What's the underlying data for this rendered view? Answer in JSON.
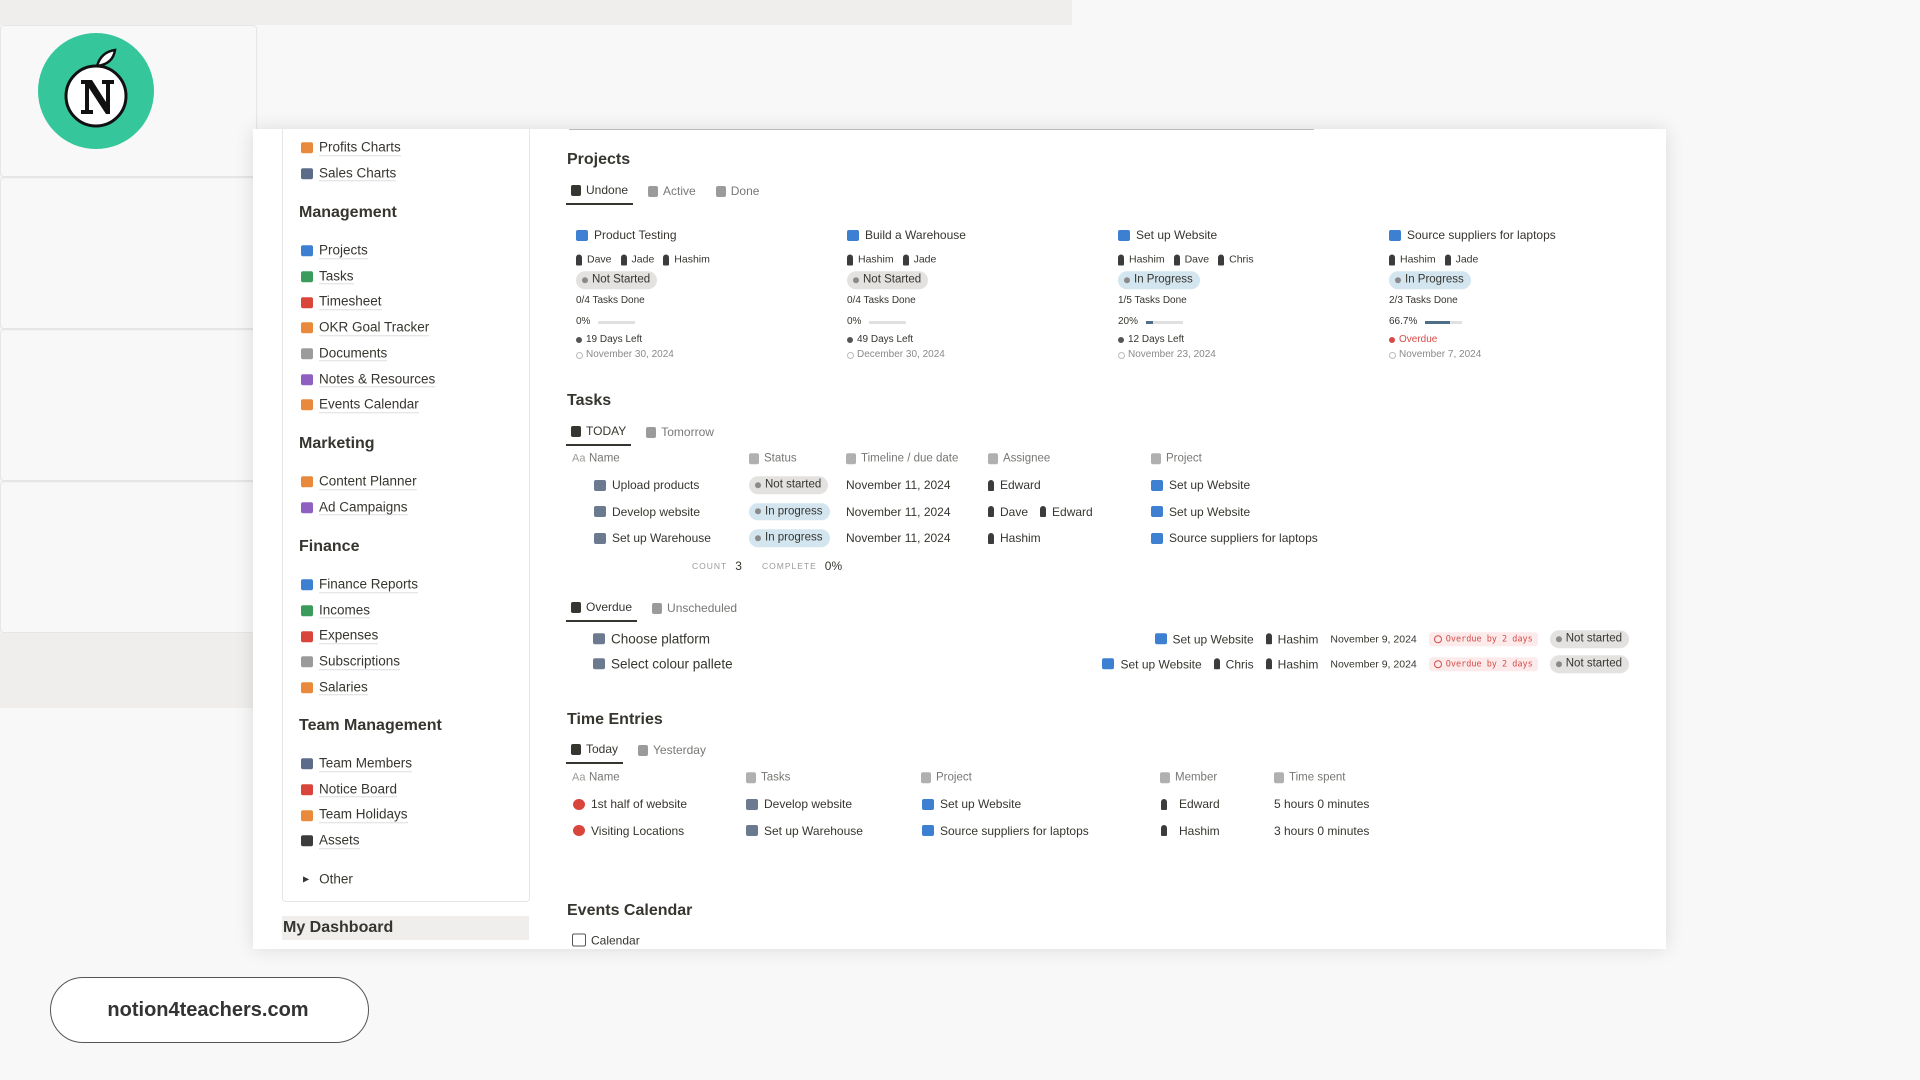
{
  "brand": {
    "url": "notion4teachers.com"
  },
  "sidebar": {
    "top_items": [
      "Profits Charts",
      "Sales Charts"
    ],
    "sections": [
      {
        "title": "Management",
        "items": [
          "Projects",
          "Tasks",
          "Timesheet",
          "OKR Goal Tracker",
          "Documents",
          "Notes & Resources",
          "Events Calendar"
        ]
      },
      {
        "title": "Marketing",
        "items": [
          "Content Planner",
          "Ad Campaigns"
        ]
      },
      {
        "title": "Finance",
        "items": [
          "Finance Reports",
          "Incomes",
          "Expenses",
          "Subscriptions",
          "Salaries"
        ]
      },
      {
        "title": "Team Management",
        "items": [
          "Team Members",
          "Notice Board",
          "Team Holidays",
          "Assets"
        ]
      }
    ],
    "other": "Other",
    "my_dashboard": "My Dashboard"
  },
  "projects": {
    "title": "Projects",
    "tabs": [
      "Undone",
      "Active",
      "Done"
    ],
    "cards": [
      {
        "name": "Product Testing",
        "people": [
          "Dave",
          "Jade",
          "Hashim"
        ],
        "status": "Not Started",
        "status_color": "#e3e2e0",
        "tasks_done": "0/4 Tasks Done",
        "progress": 0,
        "progress_label": "0%",
        "days_left": "19 Days Left",
        "date": "November 30, 2024"
      },
      {
        "name": "Build a Warehouse",
        "people": [
          "Hashim",
          "Jade"
        ],
        "status": "Not Started",
        "status_color": "#e3e2e0",
        "tasks_done": "0/4 Tasks Done",
        "progress": 0,
        "progress_label": "0%",
        "days_left": "49 Days Left",
        "date": "December 30, 2024"
      },
      {
        "name": "Set up Website",
        "people": [
          "Hashim",
          "Dave",
          "Chris"
        ],
        "status": "In Progress",
        "status_color": "#d3e5ef",
        "tasks_done": "1/5 Tasks Done",
        "progress": 20,
        "progress_label": "20%",
        "days_left": "12 Days Left",
        "date": "November 23, 2024"
      },
      {
        "name": "Source suppliers for laptops",
        "people": [
          "Hashim",
          "Jade"
        ],
        "status": "In Progress",
        "status_color": "#d3e5ef",
        "tasks_done": "2/3 Tasks Done",
        "progress": 66.7,
        "progress_label": "66.7%",
        "days_left": "Overdue",
        "date": "November 7, 2024"
      }
    ]
  },
  "tasks": {
    "title": "Tasks",
    "tabs": [
      "TODAY",
      "Tomorrow"
    ],
    "name_prefix": "Aa",
    "columns": [
      "Name",
      "Status",
      "Timeline / due date",
      "Assignee",
      "Project"
    ],
    "rows": [
      {
        "name": "Upload products",
        "status": "Not started",
        "status_color": "#e3e2e0",
        "date": "November 11, 2024",
        "assignees": [
          "Edward"
        ],
        "project": "Set up Website"
      },
      {
        "name": "Develop website",
        "status": "In progress",
        "status_color": "#d3e5ef",
        "date": "November 11, 2024",
        "assignees": [
          "Dave",
          "Edward"
        ],
        "project": "Set up Website"
      },
      {
        "name": "Set up Warehouse",
        "status": "In progress",
        "status_color": "#d3e5ef",
        "date": "November 11, 2024",
        "assignees": [
          "Hashim"
        ],
        "project": "Source suppliers for laptops"
      }
    ],
    "count_label": "COUNT",
    "count": 3,
    "complete_label": "COMPLETE",
    "complete": "0%"
  },
  "overdue": {
    "tabs": [
      "Overdue",
      "Unscheduled"
    ],
    "rows": [
      {
        "name": "Choose platform",
        "project": "Set up Website",
        "people": [
          "Hashim"
        ],
        "date": "November 9, 2024",
        "badge": "Overdue by 2 days",
        "status": "Not started"
      },
      {
        "name": "Select colour pallete",
        "project": "Set up Website",
        "people": [
          "Chris",
          "Hashim"
        ],
        "date": "November 9, 2024",
        "badge": "Overdue by 2 days",
        "status": "Not started"
      }
    ]
  },
  "time_entries": {
    "title": "Time Entries",
    "tabs": [
      "Today",
      "Yesterday"
    ],
    "name_prefix": "Aa",
    "columns": [
      "Name",
      "Tasks",
      "Project",
      "Member",
      "Time spent"
    ],
    "rows": [
      {
        "name": "1st half of website",
        "task": "Develop website",
        "project": "Set up Website",
        "member": "Edward",
        "time": "5 hours 0 minutes"
      },
      {
        "name": "Visiting Locations",
        "task": "Set up Warehouse",
        "project": "Source suppliers for laptops",
        "member": "Hashim",
        "time": "3 hours 0 minutes"
      }
    ]
  },
  "events": {
    "title": "Events Calendar",
    "tabs": [
      "Calendar"
    ]
  }
}
